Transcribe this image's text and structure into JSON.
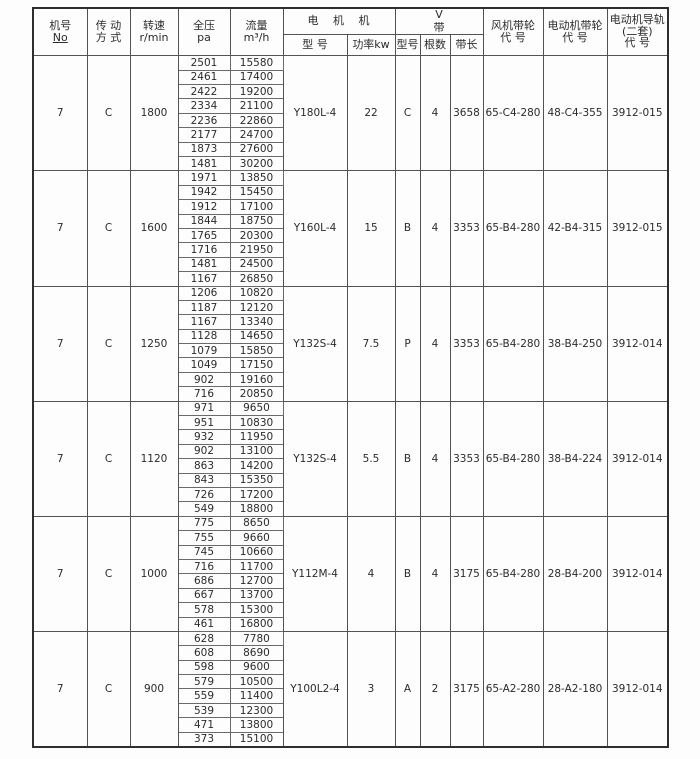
{
  "header": {
    "jihao": "机号",
    "jihao_sub": "No",
    "chuandong": "传 动",
    "chuandong_sub": "方 式",
    "zhuansu": "转速",
    "zhuansu_sub": "r/min",
    "quanya": "全压",
    "quanya_sub": "pa",
    "liuliang": "流量",
    "liuliang_sub": "m³/h",
    "motor_group": "电 机 机",
    "motor_model": "型 号",
    "motor_power": "功率kw",
    "v_group_left": "V",
    "v_group_right": "带",
    "v_model": "型号",
    "v_count": "根数",
    "v_length": "带长",
    "fan_pulley": "风机带轮",
    "fan_pulley_sub": "代 号",
    "motor_pulley": "电动机带轮",
    "motor_pulley_sub": "代 号",
    "rail_line1": "电动机导轨",
    "rail_line2": "(二套)",
    "rail_line3": "代 号"
  },
  "groups": [
    {
      "machine_no": "7",
      "drive": "C",
      "speed": "1800",
      "rows": [
        [
          "2501",
          "15580"
        ],
        [
          "2461",
          "17400"
        ],
        [
          "2422",
          "19200"
        ],
        [
          "2334",
          "21100"
        ],
        [
          "2236",
          "22860"
        ],
        [
          "2177",
          "24700"
        ],
        [
          "1873",
          "27600"
        ],
        [
          "1481",
          "30200"
        ]
      ],
      "motor_model": "Y180L-4",
      "power_kw": "22",
      "v_type": "C",
      "v_qty": "4",
      "belt_length": "3658",
      "fan_pulley_code": "65-C4-280",
      "motor_pulley_code": "48-C4-355",
      "rail_code": "3912-015"
    },
    {
      "machine_no": "7",
      "drive": "C",
      "speed": "1600",
      "rows": [
        [
          "1971",
          "13850"
        ],
        [
          "1942",
          "15450"
        ],
        [
          "1912",
          "17100"
        ],
        [
          "1844",
          "18750"
        ],
        [
          "1765",
          "20300"
        ],
        [
          "1716",
          "21950"
        ],
        [
          "1481",
          "24500"
        ],
        [
          "1167",
          "26850"
        ]
      ],
      "motor_model": "Y160L-4",
      "power_kw": "15",
      "v_type": "B",
      "v_qty": "4",
      "belt_length": "3353",
      "fan_pulley_code": "65-B4-280",
      "motor_pulley_code": "42-B4-315",
      "rail_code": "3912-015"
    },
    {
      "machine_no": "7",
      "drive": "C",
      "speed": "1250",
      "rows": [
        [
          "1206",
          "10820"
        ],
        [
          "1187",
          "12120"
        ],
        [
          "1167",
          "13340"
        ],
        [
          "1128",
          "14650"
        ],
        [
          "1079",
          "15850"
        ],
        [
          "1049",
          "17150"
        ],
        [
          "902",
          "19160"
        ],
        [
          "716",
          "20850"
        ]
      ],
      "motor_model": "Y132S-4",
      "power_kw": "7.5",
      "v_type": "P",
      "v_qty": "4",
      "belt_length": "3353",
      "fan_pulley_code": "65-B4-280",
      "motor_pulley_code": "38-B4-250",
      "rail_code": "3912-014"
    },
    {
      "machine_no": "7",
      "drive": "C",
      "speed": "1120",
      "rows": [
        [
          "971",
          "9650"
        ],
        [
          "951",
          "10830"
        ],
        [
          "932",
          "11950"
        ],
        [
          "902",
          "13100"
        ],
        [
          "863",
          "14200"
        ],
        [
          "843",
          "15350"
        ],
        [
          "726",
          "17200"
        ],
        [
          "549",
          "18800"
        ]
      ],
      "motor_model": "Y132S-4",
      "power_kw": "5.5",
      "v_type": "B",
      "v_qty": "4",
      "belt_length": "3353",
      "fan_pulley_code": "65-B4-280",
      "motor_pulley_code": "38-B4-224",
      "rail_code": "3912-014"
    },
    {
      "machine_no": "7",
      "drive": "C",
      "speed": "1000",
      "rows": [
        [
          "775",
          "8650"
        ],
        [
          "755",
          "9660"
        ],
        [
          "745",
          "10660"
        ],
        [
          "716",
          "11700"
        ],
        [
          "686",
          "12700"
        ],
        [
          "667",
          "13700"
        ],
        [
          "578",
          "15300"
        ],
        [
          "461",
          "16800"
        ]
      ],
      "motor_model": "Y112M-4",
      "power_kw": "4",
      "v_type": "B",
      "v_qty": "4",
      "belt_length": "3175",
      "fan_pulley_code": "65-B4-280",
      "motor_pulley_code": "28-B4-200",
      "rail_code": "3912-014"
    },
    {
      "machine_no": "7",
      "drive": "C",
      "speed": "900",
      "rows": [
        [
          "628",
          "7780"
        ],
        [
          "608",
          "8690"
        ],
        [
          "598",
          "9600"
        ],
        [
          "579",
          "10500"
        ],
        [
          "559",
          "11400"
        ],
        [
          "539",
          "12300"
        ],
        [
          "471",
          "13800"
        ],
        [
          "373",
          "15100"
        ]
      ],
      "motor_model": "Y100L2-4",
      "power_kw": "3",
      "v_type": "A",
      "v_qty": "2",
      "belt_length": "3175",
      "fan_pulley_code": "65-A2-280",
      "motor_pulley_code": "28-A2-180",
      "rail_code": "3912-014"
    }
  ]
}
